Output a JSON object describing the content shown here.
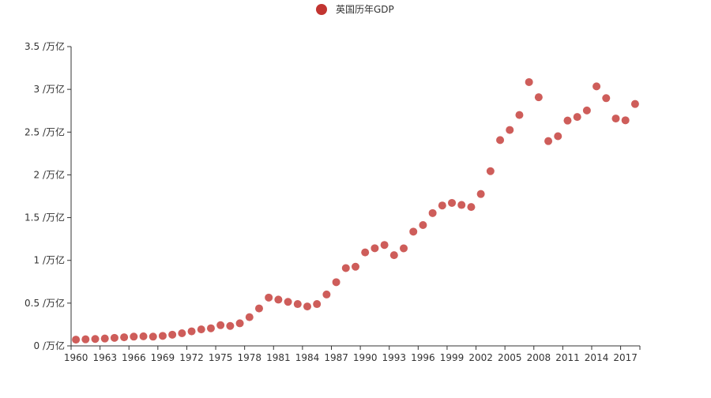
{
  "chart_data": {
    "type": "scatter",
    "title": "",
    "legend": {
      "entries": [
        "英国历年GDP"
      ],
      "placement": "top-center"
    },
    "xlabel": "",
    "ylabel": "",
    "y_unit_suffix": " /万亿",
    "ylim": [
      0,
      3.5
    ],
    "y_ticks": [
      0,
      0.5,
      1,
      1.5,
      2,
      2.5,
      3,
      3.5
    ],
    "y_tick_labels": [
      "0 /万亿",
      "0.5 /万亿",
      "1 /万亿",
      "1.5 /万亿",
      "2 /万亿",
      "2.5 /万亿",
      "3 /万亿",
      "3.5 /万亿"
    ],
    "x_tick_labels": [
      "1960",
      "1963",
      "1966",
      "1969",
      "1972",
      "1975",
      "1978",
      "1981",
      "1984",
      "1987",
      "1990",
      "1993",
      "1996",
      "1999",
      "2002",
      "2005",
      "2008",
      "2011",
      "2014",
      "2017"
    ],
    "color": "#c23531",
    "series": [
      {
        "name": "英国历年GDP",
        "x": [
          1960,
          1961,
          1962,
          1963,
          1964,
          1965,
          1966,
          1967,
          1968,
          1969,
          1970,
          1971,
          1972,
          1973,
          1974,
          1975,
          1976,
          1977,
          1978,
          1979,
          1980,
          1981,
          1982,
          1983,
          1984,
          1985,
          1986,
          1987,
          1988,
          1989,
          1990,
          1991,
          1992,
          1993,
          1994,
          1995,
          1996,
          1997,
          1998,
          1999,
          2000,
          2001,
          2002,
          2003,
          2004,
          2005,
          2006,
          2007,
          2008,
          2009,
          2010,
          2011,
          2012,
          2013,
          2014,
          2015,
          2016,
          2017,
          2018
        ],
        "values": [
          0.073,
          0.077,
          0.081,
          0.086,
          0.094,
          0.101,
          0.108,
          0.112,
          0.108,
          0.117,
          0.131,
          0.148,
          0.17,
          0.193,
          0.206,
          0.242,
          0.233,
          0.264,
          0.336,
          0.438,
          0.565,
          0.541,
          0.515,
          0.489,
          0.461,
          0.489,
          0.601,
          0.745,
          0.91,
          0.926,
          1.093,
          1.142,
          1.18,
          1.061,
          1.141,
          1.336,
          1.413,
          1.553,
          1.642,
          1.672,
          1.648,
          1.624,
          1.776,
          2.043,
          2.407,
          2.525,
          2.7,
          3.085,
          2.908,
          2.395,
          2.452,
          2.635,
          2.677,
          2.753,
          3.035,
          2.897,
          2.659,
          2.638,
          2.829
        ]
      }
    ]
  }
}
